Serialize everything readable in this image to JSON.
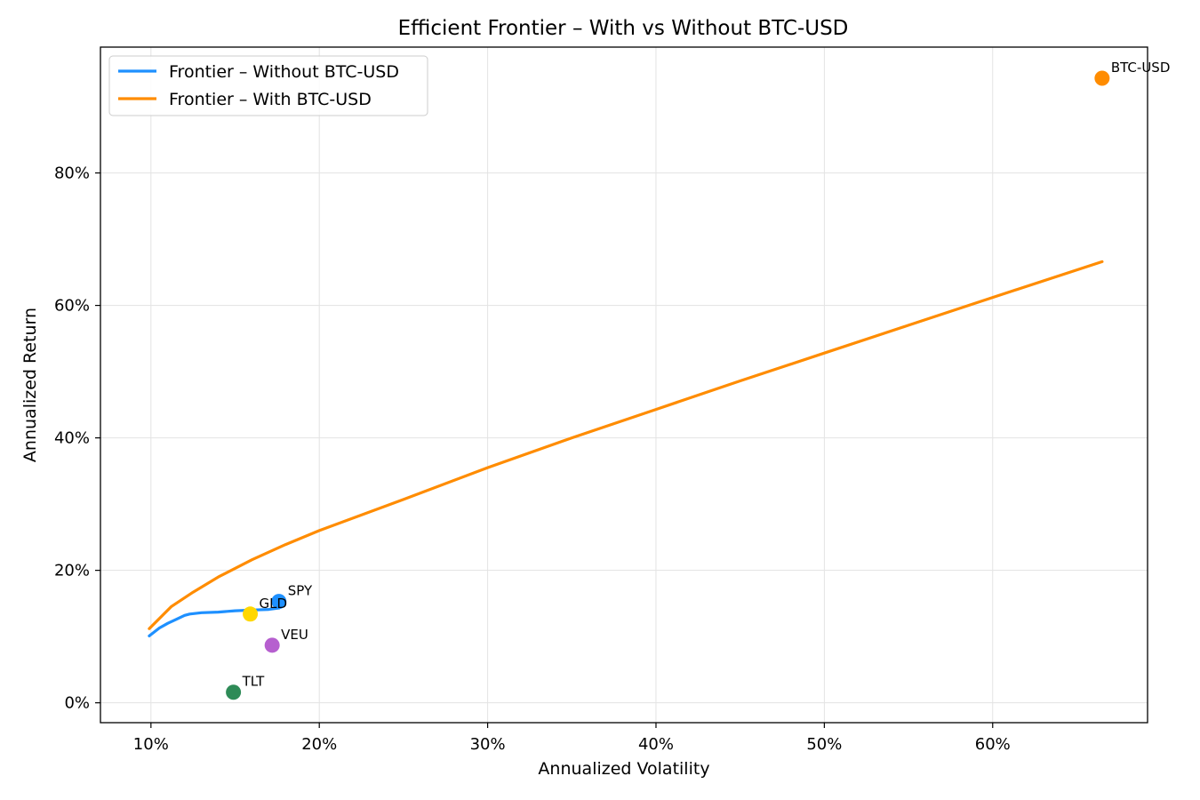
{
  "chart_data": {
    "type": "line",
    "title": "Efficient Frontier – With vs Without BTC-USD",
    "xlabel": "Annualized Volatility",
    "ylabel": "Annualized Return",
    "xlim": [
      0.07,
      0.692
    ],
    "ylim": [
      -0.03,
      0.99
    ],
    "x_ticks": [
      0.1,
      0.2,
      0.3,
      0.4,
      0.5,
      0.6
    ],
    "x_tick_labels": [
      "10%",
      "20%",
      "30%",
      "40%",
      "50%",
      "60%"
    ],
    "y_ticks": [
      0.0,
      0.2,
      0.4,
      0.6,
      0.8
    ],
    "y_tick_labels": [
      "0%",
      "20%",
      "40%",
      "60%",
      "80%"
    ],
    "grid": true,
    "legend_position": "top-left",
    "series": [
      {
        "name": "Frontier – Without BTC-USD",
        "color": "#1e90ff",
        "x": [
          0.099,
          0.105,
          0.11,
          0.115,
          0.12,
          0.123,
          0.13,
          0.14,
          0.15,
          0.16,
          0.17,
          0.176
        ],
        "y": [
          0.101,
          0.113,
          0.12,
          0.126,
          0.132,
          0.134,
          0.136,
          0.137,
          0.139,
          0.14,
          0.141,
          0.143
        ]
      },
      {
        "name": "Frontier – With BTC-USD",
        "color": "#ff8c00",
        "x": [
          0.099,
          0.112,
          0.125,
          0.14,
          0.16,
          0.18,
          0.2,
          0.25,
          0.3,
          0.35,
          0.4,
          0.45,
          0.5,
          0.55,
          0.6,
          0.665
        ],
        "y": [
          0.112,
          0.145,
          0.167,
          0.19,
          0.216,
          0.239,
          0.26,
          0.307,
          0.355,
          0.4,
          0.443,
          0.486,
          0.528,
          0.57,
          0.612,
          0.666
        ]
      }
    ],
    "points": [
      {
        "label": "BTC-USD",
        "x": 0.665,
        "y": 0.943,
        "color": "#ff8c00"
      },
      {
        "label": "SPY",
        "x": 0.176,
        "y": 0.153,
        "color": "#1e90ff"
      },
      {
        "label": "GLD",
        "x": 0.159,
        "y": 0.134,
        "color": "#ffd700"
      },
      {
        "label": "VEU",
        "x": 0.172,
        "y": 0.087,
        "color": "#b65fcf"
      },
      {
        "label": "TLT",
        "x": 0.149,
        "y": 0.016,
        "color": "#2e8b57"
      }
    ]
  }
}
